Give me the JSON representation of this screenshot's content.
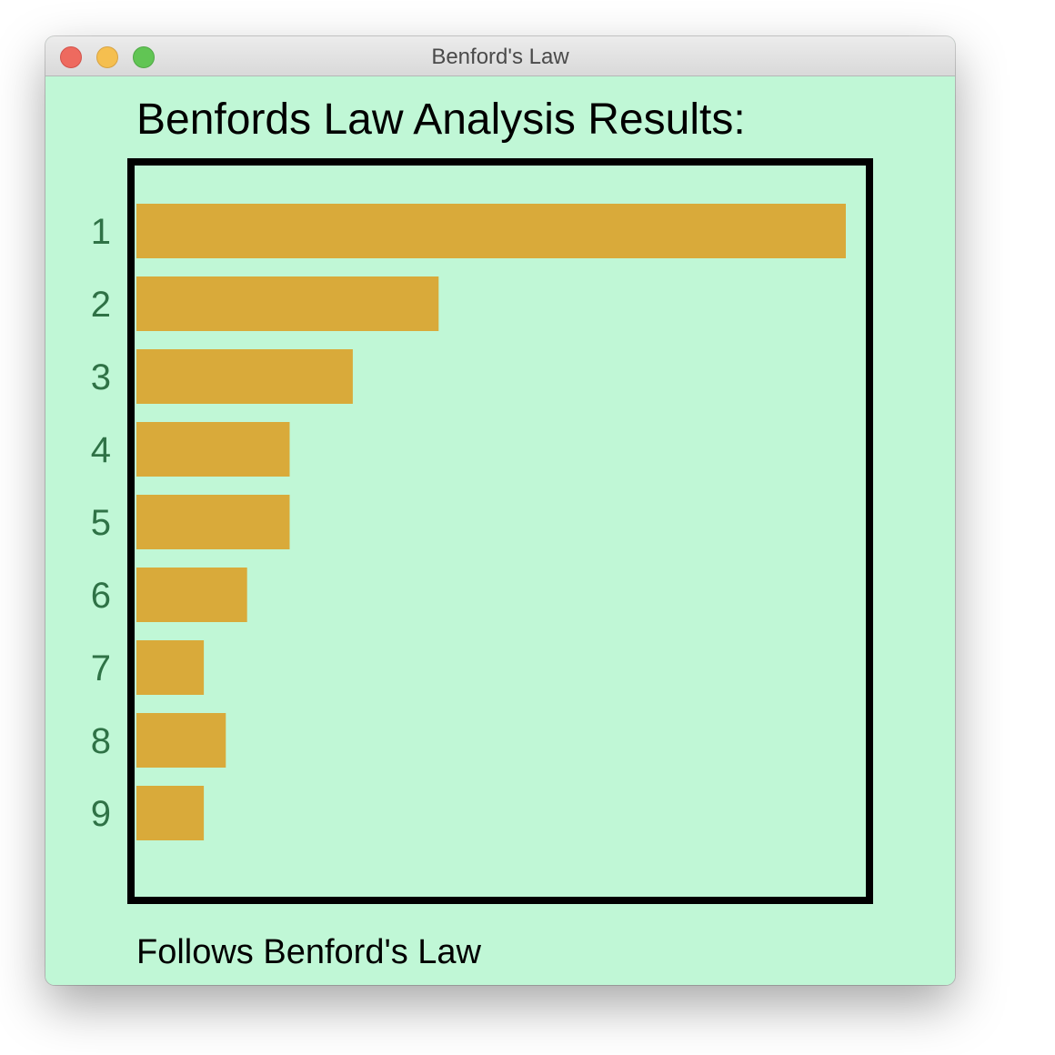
{
  "window": {
    "title": "Benford's Law"
  },
  "heading": "Benfords Law Analysis Results:",
  "status": "Follows Benford's Law",
  "colors": {
    "background": "#c0f7d6",
    "bar": "#d9aa3a",
    "label": "#2f7246",
    "frame": "#000000"
  },
  "chart_data": {
    "type": "bar",
    "orientation": "horizontal",
    "categories": [
      "1",
      "2",
      "3",
      "4",
      "5",
      "6",
      "7",
      "8",
      "9"
    ],
    "values": [
      100,
      42.6,
      30.5,
      21.6,
      21.6,
      15.6,
      9.5,
      12.6,
      9.5
    ],
    "xlim": [
      0,
      100
    ],
    "grid": false
  }
}
